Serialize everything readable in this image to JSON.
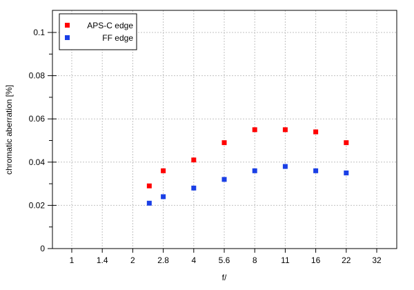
{
  "chart_data": {
    "type": "scatter",
    "title": "",
    "xlabel": "f/",
    "ylabel": "chromatic aberration [%]",
    "x_scale": "log",
    "x_ticks": [
      "1",
      "1.4",
      "2",
      "2.8",
      "4",
      "5.6",
      "8",
      "11",
      "16",
      "22",
      "32"
    ],
    "y_ticks": [
      "0",
      "0.02",
      "0.04",
      "0.06",
      "0.08",
      "0.1"
    ],
    "ylim": [
      0,
      0.11
    ],
    "grid": true,
    "legend_position": "top-left",
    "series": [
      {
        "name": "APS-C edge",
        "color": "#ff0000",
        "x": [
          2.4,
          2.8,
          4,
          5.6,
          8,
          11,
          16,
          22
        ],
        "y": [
          0.029,
          0.036,
          0.041,
          0.049,
          0.055,
          0.055,
          0.054,
          0.049
        ]
      },
      {
        "name": "FF edge",
        "color": "#1a3fe6",
        "x": [
          2.4,
          2.8,
          4,
          5.6,
          8,
          11,
          16,
          22
        ],
        "y": [
          0.021,
          0.024,
          0.028,
          0.032,
          0.036,
          0.038,
          0.036,
          0.035
        ]
      }
    ]
  }
}
